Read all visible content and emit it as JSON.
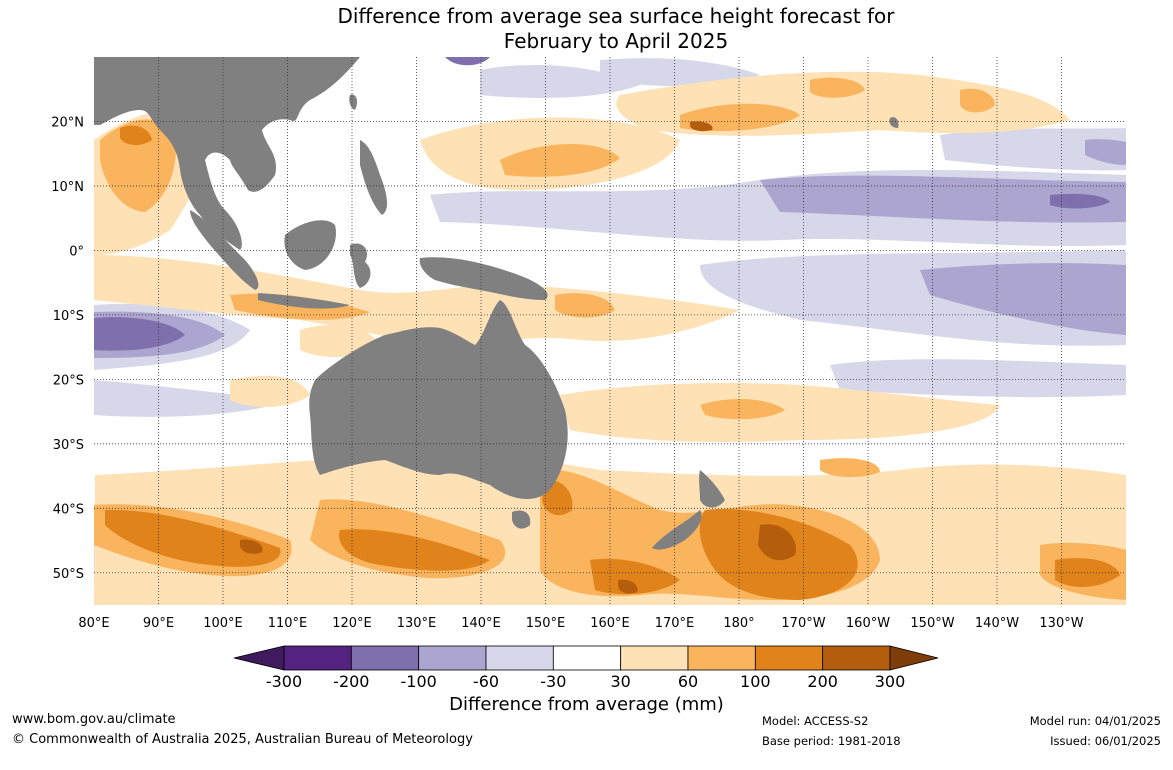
{
  "title": {
    "line1": "Difference from average sea surface height forecast for",
    "line2": "February to April 2025"
  },
  "map": {
    "lon_range": [
      80,
      240
    ],
    "lat_range": [
      -55,
      30
    ],
    "x_ticks": [
      {
        "lon": 80,
        "label": "80°E"
      },
      {
        "lon": 90,
        "label": "90°E"
      },
      {
        "lon": 100,
        "label": "100°E"
      },
      {
        "lon": 110,
        "label": "110°E"
      },
      {
        "lon": 120,
        "label": "120°E"
      },
      {
        "lon": 130,
        "label": "130°E"
      },
      {
        "lon": 140,
        "label": "140°E"
      },
      {
        "lon": 150,
        "label": "150°E"
      },
      {
        "lon": 160,
        "label": "160°E"
      },
      {
        "lon": 170,
        "label": "170°E"
      },
      {
        "lon": 180,
        "label": "180°"
      },
      {
        "lon": 190,
        "label": "170°W"
      },
      {
        "lon": 200,
        "label": "160°W"
      },
      {
        "lon": 210,
        "label": "150°W"
      },
      {
        "lon": 220,
        "label": "140°W"
      },
      {
        "lon": 230,
        "label": "130°W"
      }
    ],
    "y_ticks": [
      {
        "lat": 20,
        "label": "20°N"
      },
      {
        "lat": 10,
        "label": "10°N"
      },
      {
        "lat": 0,
        "label": "0°"
      },
      {
        "lat": -10,
        "label": "10°S"
      },
      {
        "lat": -20,
        "label": "20°S"
      },
      {
        "lat": -30,
        "label": "30°S"
      },
      {
        "lat": -40,
        "label": "40°S"
      },
      {
        "lat": -50,
        "label": "50°S"
      }
    ],
    "land_color": "#808080"
  },
  "colorbar": {
    "title": "Difference from average (mm)",
    "labels": [
      "-300",
      "-200",
      "-100",
      "-60",
      "-30",
      "30",
      "60",
      "100",
      "200",
      "300"
    ],
    "colors": [
      "#3f1a5e",
      "#54227f",
      "#7f6fac",
      "#aca5cf",
      "#d7d7ea",
      "#ffffff",
      "#fee1b4",
      "#fbb45e",
      "#e0831a",
      "#b45e0d",
      "#7f3d0a"
    ]
  },
  "footer": {
    "website": "www.bom.gov.au/climate",
    "copyright": "© Commonwealth of Australia 2025, Australian Bureau of Meteorology",
    "model": "Model: ACCESS-S2",
    "base_period": "Base period: 1981-2018",
    "model_run": "Model run: 04/01/2025",
    "issued": "Issued: 06/01/2025"
  }
}
